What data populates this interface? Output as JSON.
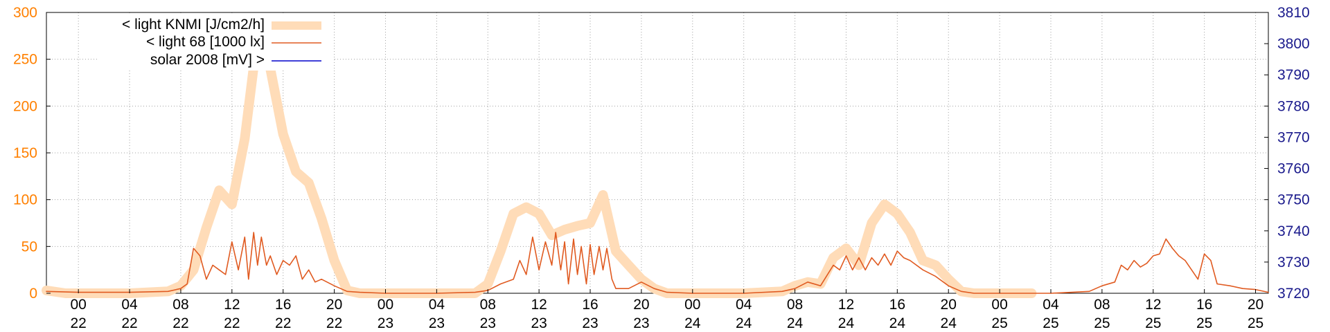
{
  "chart_data": {
    "type": "line",
    "x_unit": "hour",
    "x_range_hours": [
      -2.5,
      93
    ],
    "y_left": {
      "ticks": [
        "0",
        "50",
        "100",
        "150",
        "200",
        "250",
        "300"
      ],
      "ylim": [
        0,
        300
      ],
      "color": "#ff8000"
    },
    "y_right": {
      "ticks": [
        "3720",
        "3730",
        "3740",
        "3750",
        "3760",
        "3770",
        "3780",
        "3790",
        "3800",
        "3810"
      ],
      "ylim": [
        3720,
        3810
      ],
      "color": "#1a1a8c"
    },
    "x_ticks": [
      {
        "h": 0,
        "hour": "00",
        "day": "22"
      },
      {
        "h": 4,
        "hour": "04",
        "day": "22"
      },
      {
        "h": 8,
        "hour": "08",
        "day": "22"
      },
      {
        "h": 12,
        "hour": "12",
        "day": "22"
      },
      {
        "h": 16,
        "hour": "16",
        "day": "22"
      },
      {
        "h": 20,
        "hour": "20",
        "day": "22"
      },
      {
        "h": 24,
        "hour": "00",
        "day": "23"
      },
      {
        "h": 28,
        "hour": "04",
        "day": "23"
      },
      {
        "h": 32,
        "hour": "08",
        "day": "23"
      },
      {
        "h": 36,
        "hour": "12",
        "day": "23"
      },
      {
        "h": 40,
        "hour": "16",
        "day": "23"
      },
      {
        "h": 44,
        "hour": "20",
        "day": "23"
      },
      {
        "h": 48,
        "hour": "00",
        "day": "24"
      },
      {
        "h": 52,
        "hour": "04",
        "day": "24"
      },
      {
        "h": 56,
        "hour": "08",
        "day": "24"
      },
      {
        "h": 60,
        "hour": "12",
        "day": "24"
      },
      {
        "h": 64,
        "hour": "16",
        "day": "24"
      },
      {
        "h": 68,
        "hour": "20",
        "day": "24"
      },
      {
        "h": 72,
        "hour": "00",
        "day": "25"
      },
      {
        "h": 76,
        "hour": "04",
        "day": "25"
      },
      {
        "h": 80,
        "hour": "08",
        "day": "25"
      },
      {
        "h": 84,
        "hour": "12",
        "day": "25"
      },
      {
        "h": 88,
        "hour": "16",
        "day": "25"
      },
      {
        "h": 92,
        "hour": "20",
        "day": "25"
      }
    ],
    "series": [
      {
        "name": "< light KNMI [J/cm2/h]",
        "axis": "left",
        "color": "#ffdcb8",
        "points": [
          [
            -2.5,
            3
          ],
          [
            -1,
            0
          ],
          [
            0,
            0
          ],
          [
            4,
            0
          ],
          [
            7,
            2
          ],
          [
            8,
            8
          ],
          [
            9,
            25
          ],
          [
            10,
            70
          ],
          [
            11,
            110
          ],
          [
            12,
            95
          ],
          [
            13,
            165
          ],
          [
            14,
            275
          ],
          [
            15,
            240
          ],
          [
            16,
            170
          ],
          [
            17,
            130
          ],
          [
            18,
            118
          ],
          [
            19,
            80
          ],
          [
            20,
            35
          ],
          [
            21,
            3
          ],
          [
            22,
            0
          ],
          [
            24,
            0
          ],
          [
            28,
            0
          ],
          [
            31,
            0
          ],
          [
            32,
            10
          ],
          [
            33,
            45
          ],
          [
            34,
            85
          ],
          [
            35,
            92
          ],
          [
            36,
            85
          ],
          [
            37,
            62
          ],
          [
            38,
            68
          ],
          [
            39,
            72
          ],
          [
            40,
            75
          ],
          [
            41,
            105
          ],
          [
            42,
            45
          ],
          [
            43,
            30
          ],
          [
            44,
            15
          ],
          [
            45,
            5
          ],
          [
            46,
            0
          ],
          [
            48,
            0
          ],
          [
            52,
            0
          ],
          [
            55,
            2
          ],
          [
            56,
            8
          ],
          [
            57,
            12
          ],
          [
            58,
            10
          ],
          [
            59,
            38
          ],
          [
            60,
            48
          ],
          [
            61,
            30
          ],
          [
            62,
            75
          ],
          [
            63,
            95
          ],
          [
            64,
            85
          ],
          [
            65,
            65
          ],
          [
            66,
            35
          ],
          [
            67,
            30
          ],
          [
            68,
            15
          ],
          [
            69,
            2
          ],
          [
            70,
            0
          ],
          [
            72,
            0
          ],
          [
            74.5,
            0
          ]
        ]
      },
      {
        "name": "< light 68 [1000 lx]",
        "axis": "left",
        "color": "#e05a20",
        "points": [
          [
            -2.5,
            2
          ],
          [
            0,
            1
          ],
          [
            4,
            1
          ],
          [
            7,
            2
          ],
          [
            8,
            5
          ],
          [
            8.5,
            10
          ],
          [
            9,
            48
          ],
          [
            9.5,
            40
          ],
          [
            10,
            15
          ],
          [
            10.5,
            30
          ],
          [
            11,
            25
          ],
          [
            11.5,
            20
          ],
          [
            12,
            55
          ],
          [
            12.5,
            25
          ],
          [
            13,
            60
          ],
          [
            13.3,
            15
          ],
          [
            13.7,
            65
          ],
          [
            14,
            30
          ],
          [
            14.3,
            60
          ],
          [
            14.7,
            30
          ],
          [
            15,
            40
          ],
          [
            15.5,
            20
          ],
          [
            16,
            35
          ],
          [
            16.5,
            30
          ],
          [
            17,
            40
          ],
          [
            17.5,
            15
          ],
          [
            18,
            25
          ],
          [
            18.5,
            12
          ],
          [
            19,
            15
          ],
          [
            20,
            8
          ],
          [
            21,
            2
          ],
          [
            22,
            1
          ],
          [
            24,
            0
          ],
          [
            28,
            0
          ],
          [
            31,
            1
          ],
          [
            32,
            3
          ],
          [
            33,
            10
          ],
          [
            34,
            15
          ],
          [
            34.5,
            35
          ],
          [
            35,
            20
          ],
          [
            35.5,
            60
          ],
          [
            36,
            25
          ],
          [
            36.5,
            55
          ],
          [
            37,
            30
          ],
          [
            37.3,
            65
          ],
          [
            37.7,
            25
          ],
          [
            38,
            55
          ],
          [
            38.3,
            10
          ],
          [
            38.7,
            58
          ],
          [
            39,
            20
          ],
          [
            39.3,
            50
          ],
          [
            39.7,
            10
          ],
          [
            40,
            52
          ],
          [
            40.3,
            20
          ],
          [
            40.7,
            50
          ],
          [
            41,
            25
          ],
          [
            41.3,
            48
          ],
          [
            41.7,
            15
          ],
          [
            42,
            5
          ],
          [
            43,
            5
          ],
          [
            44,
            12
          ],
          [
            45,
            5
          ],
          [
            46,
            1
          ],
          [
            48,
            0
          ],
          [
            52,
            0
          ],
          [
            55,
            2
          ],
          [
            56,
            5
          ],
          [
            57,
            12
          ],
          [
            58,
            8
          ],
          [
            59,
            30
          ],
          [
            59.5,
            25
          ],
          [
            60,
            40
          ],
          [
            60.5,
            25
          ],
          [
            61,
            38
          ],
          [
            61.5,
            25
          ],
          [
            62,
            38
          ],
          [
            62.5,
            30
          ],
          [
            63,
            42
          ],
          [
            63.5,
            30
          ],
          [
            64,
            45
          ],
          [
            64.5,
            38
          ],
          [
            65,
            35
          ],
          [
            66,
            25
          ],
          [
            67,
            18
          ],
          [
            68,
            8
          ],
          [
            69,
            2
          ],
          [
            70,
            0
          ],
          [
            72,
            0
          ],
          [
            76,
            0
          ],
          [
            79,
            2
          ],
          [
            80,
            8
          ],
          [
            81,
            12
          ],
          [
            81.5,
            30
          ],
          [
            82,
            25
          ],
          [
            82.5,
            35
          ],
          [
            83,
            28
          ],
          [
            83.5,
            32
          ],
          [
            84,
            40
          ],
          [
            84.5,
            42
          ],
          [
            85,
            58
          ],
          [
            85.5,
            48
          ],
          [
            86,
            40
          ],
          [
            86.5,
            35
          ],
          [
            87,
            25
          ],
          [
            87.5,
            15
          ],
          [
            88,
            42
          ],
          [
            88.5,
            35
          ],
          [
            89,
            10
          ],
          [
            90,
            8
          ],
          [
            91,
            5
          ],
          [
            92,
            4
          ],
          [
            93,
            1
          ]
        ]
      },
      {
        "name": "solar 2008 [mV] >",
        "axis": "right",
        "color": "#0000cc",
        "points": []
      }
    ],
    "legend_position": "top-left",
    "grid": true
  }
}
